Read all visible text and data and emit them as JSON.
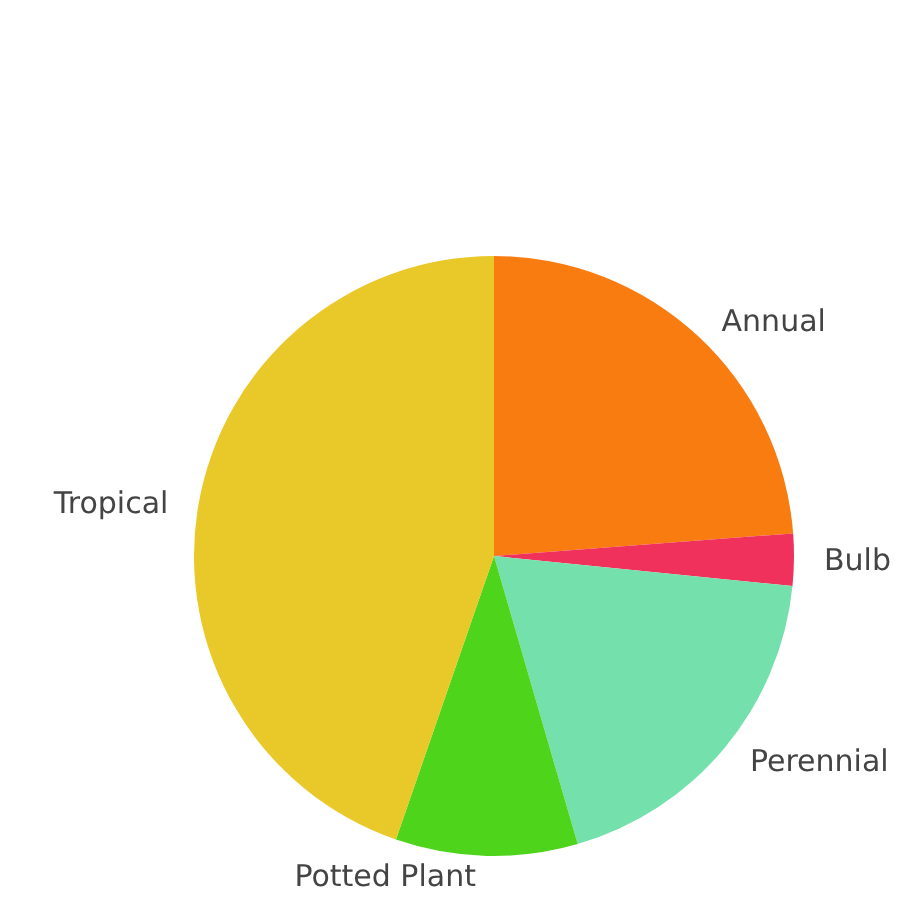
{
  "chart_data": {
    "type": "pie",
    "categories": [
      "Annual",
      "Bulb",
      "Perennial",
      "Potted Plant",
      "Tropical"
    ],
    "values": [
      23.8,
      2.8,
      18.9,
      9.8,
      44.7
    ],
    "colors": [
      "#f97c10",
      "#f0315c",
      "#74e0ac",
      "#4fd41c",
      "#e9c82a"
    ]
  }
}
